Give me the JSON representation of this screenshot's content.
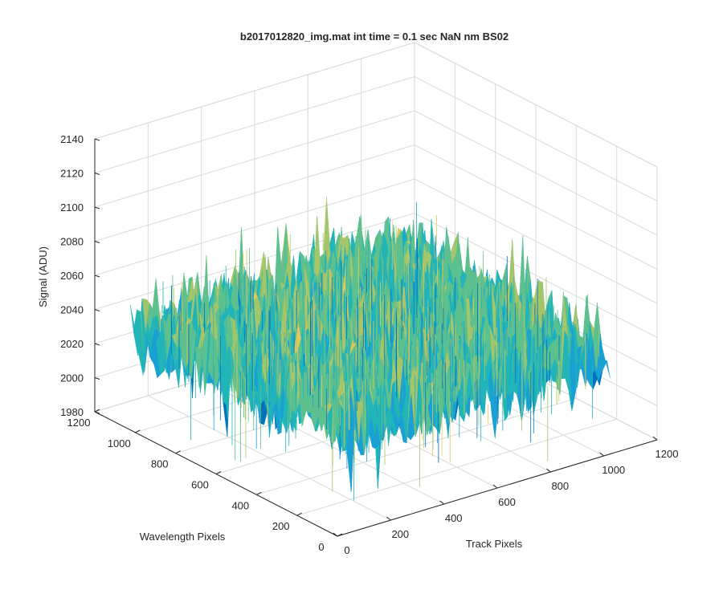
{
  "chart_data": {
    "type": "surface",
    "title": "b2017012820_img.mat int time = 0.1 sec  NaN nm BS02",
    "xlabel": "Track Pixels",
    "ylabel": "Wavelength Pixels",
    "zlabel": "Signal (ADU)",
    "xlim": [
      0,
      1200
    ],
    "ylim": [
      0,
      1200
    ],
    "zlim": [
      1980,
      2140
    ],
    "x_ticks": [
      "0",
      "200",
      "400",
      "600",
      "800",
      "1000",
      "1200"
    ],
    "y_ticks": [
      "0",
      "200",
      "400",
      "600",
      "800",
      "1000",
      "1200"
    ],
    "z_ticks": [
      "1980",
      "2000",
      "2020",
      "2040",
      "2060",
      "2080",
      "2100",
      "2120",
      "2140"
    ],
    "grid": true,
    "surface_x_extent": [
      0,
      1024
    ],
    "surface_y_extent": [
      0,
      1024
    ],
    "signal_mean": 2040,
    "signal_range": [
      1985,
      2130
    ],
    "colormap": [
      "#0072bd",
      "#1aa0d2",
      "#22b5b8",
      "#5cc08f",
      "#a5c56a",
      "#e0c85a"
    ]
  }
}
